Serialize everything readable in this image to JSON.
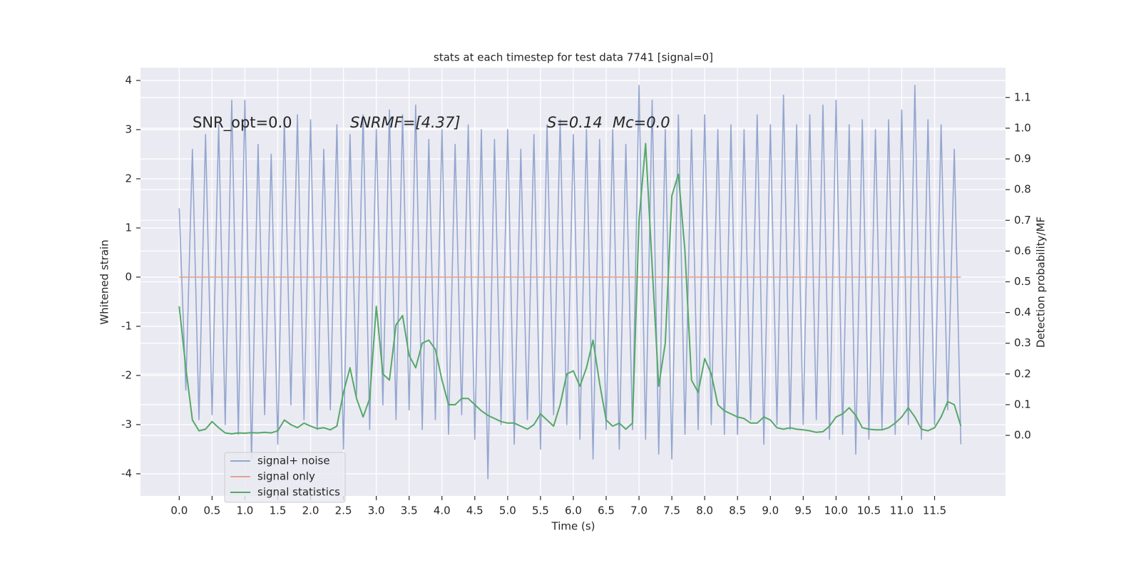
{
  "chart_data": {
    "type": "line",
    "title": "stats at each timestep for test data 7741 [signal=0]",
    "xlabel": "Time (s)",
    "ylabel": "Whitened strain",
    "y2label": "Detection probability/MF",
    "annotations": [
      "SNR_opt=0.0",
      "SNRMF=[4.37]",
      "S=0.14",
      "Mc=0.0"
    ],
    "grid": true,
    "legend": "lower left",
    "xlim": [
      -0.59,
      12.58
    ],
    "xticks": [
      {
        "value": 0,
        "label": "0.0"
      },
      0.5,
      {
        "value": 1,
        "label": "1.0"
      },
      1.5,
      {
        "value": 2,
        "label": "2.0"
      },
      2.5,
      {
        "value": 3,
        "label": "3.0"
      },
      3.5,
      {
        "value": 4,
        "label": "4.0"
      },
      4.5,
      {
        "value": 5,
        "label": "5.0"
      },
      5.5,
      {
        "value": 6,
        "label": "6.0"
      },
      6.5,
      {
        "value": 7,
        "label": "7.0"
      },
      7.5,
      {
        "value": 8,
        "label": "8.0"
      },
      8.5,
      {
        "value": 9,
        "label": "9.0"
      },
      9.5,
      {
        "value": 10,
        "label": "10.0"
      },
      10.5,
      {
        "value": 11,
        "label": "11.0"
      },
      11.5
    ],
    "ylim": [
      -4.45,
      4.26
    ],
    "yticks": [
      -4,
      -3,
      -2,
      -1,
      0,
      1,
      2,
      3,
      4
    ],
    "y2lim": [
      -0.197,
      1.197
    ],
    "y2ticks": [
      {
        "value": 0,
        "label": "0.0"
      },
      0.1,
      0.2,
      0.3,
      0.4,
      0.5,
      0.6,
      0.7,
      0.8,
      0.9,
      {
        "value": 1,
        "label": "1.0"
      },
      1.1
    ],
    "x": [
      0.0,
      0.1,
      0.2,
      0.3,
      0.4,
      0.5,
      0.6,
      0.7,
      0.8,
      0.9,
      1.0,
      1.1,
      1.2,
      1.3,
      1.4,
      1.5,
      1.6,
      1.7,
      1.8,
      1.9,
      2.0,
      2.1,
      2.2,
      2.3,
      2.4,
      2.5,
      2.6,
      2.7,
      2.8,
      2.9,
      3.0,
      3.1,
      3.2,
      3.3,
      3.4,
      3.5,
      3.6,
      3.7,
      3.8,
      3.9,
      4.0,
      4.1,
      4.2,
      4.3,
      4.4,
      4.5,
      4.6,
      4.7,
      4.8,
      4.9,
      5.0,
      5.1,
      5.2,
      5.3,
      5.4,
      5.5,
      5.6,
      5.7,
      5.8,
      5.9,
      6.0,
      6.1,
      6.2,
      6.3,
      6.4,
      6.5,
      6.6,
      6.7,
      6.8,
      6.9,
      7.0,
      7.1,
      7.2,
      7.3,
      7.4,
      7.5,
      7.6,
      7.7,
      7.8,
      7.9,
      8.0,
      8.1,
      8.2,
      8.3,
      8.4,
      8.5,
      8.6,
      8.7,
      8.8,
      8.9,
      9.0,
      9.1,
      9.2,
      9.3,
      9.4,
      9.5,
      9.6,
      9.7,
      9.8,
      9.9,
      10.0,
      10.1,
      10.2,
      10.3,
      10.4,
      10.5,
      10.6,
      10.7,
      10.8,
      10.9,
      11.0,
      11.1,
      11.2,
      11.3,
      11.4,
      11.5,
      11.6,
      11.7,
      11.8,
      11.9
    ],
    "series": [
      {
        "name": "signal+ noise",
        "color": "#93a6cf",
        "values": [
          1.4,
          -2.3,
          2.6,
          -2.9,
          2.9,
          -2.8,
          3.1,
          -3.0,
          3.6,
          -3.2,
          3.6,
          -3.7,
          2.7,
          -2.8,
          2.5,
          -3.4,
          3.2,
          -2.6,
          3.3,
          -2.9,
          3.2,
          -3.1,
          2.6,
          -2.7,
          3.1,
          -3.5,
          2.9,
          -2.4,
          3.3,
          -3.1,
          3.0,
          -2.6,
          3.4,
          -2.9,
          3.3,
          -2.7,
          3.5,
          -3.1,
          2.8,
          -2.9,
          3.0,
          -3.2,
          2.7,
          -2.8,
          3.1,
          -3.3,
          3.0,
          -4.1,
          2.8,
          -3.0,
          3.0,
          -3.4,
          2.6,
          -2.9,
          2.9,
          -3.5,
          3.1,
          -2.8,
          3.2,
          -3.0,
          2.9,
          -3.3,
          3.0,
          -3.7,
          2.8,
          -3.1,
          3.0,
          -3.5,
          2.7,
          -3.1,
          3.9,
          -3.3,
          3.6,
          -3.6,
          3.0,
          -3.7,
          3.3,
          -3.2,
          3.0,
          -3.1,
          3.3,
          -3.0,
          3.0,
          -3.2,
          3.1,
          -3.2,
          3.0,
          -2.9,
          3.3,
          -3.4,
          3.1,
          -3.0,
          3.7,
          -3.1,
          3.1,
          -3.0,
          3.3,
          -2.9,
          3.5,
          -3.3,
          3.6,
          -3.2,
          3.1,
          -3.6,
          3.2,
          -3.3,
          3.0,
          -3.1,
          3.2,
          -3.2,
          3.4,
          -3.0,
          3.9,
          -3.3,
          3.2,
          -3.0,
          3.1,
          -2.7,
          2.6,
          -3.4
        ]
      },
      {
        "name": "signal only",
        "color": "#e3a58a",
        "x": [
          0.0,
          11.9
        ],
        "values": [
          0,
          0
        ]
      },
      {
        "name": "signal statistics",
        "color": "#55a868",
        "axis": "y2",
        "values": [
          0.42,
          0.22,
          0.05,
          0.015,
          0.02,
          0.045,
          0.025,
          0.008,
          0.005,
          0.008,
          0.007,
          0.009,
          0.008,
          0.01,
          0.008,
          0.015,
          0.05,
          0.035,
          0.025,
          0.04,
          0.03,
          0.022,
          0.025,
          0.018,
          0.03,
          0.14,
          0.22,
          0.12,
          0.06,
          0.12,
          0.42,
          0.2,
          0.18,
          0.36,
          0.39,
          0.26,
          0.22,
          0.3,
          0.31,
          0.28,
          0.18,
          0.1,
          0.1,
          0.12,
          0.12,
          0.1,
          0.08,
          0.065,
          0.055,
          0.045,
          0.04,
          0.04,
          0.03,
          0.02,
          0.035,
          0.07,
          0.05,
          0.03,
          0.1,
          0.2,
          0.21,
          0.16,
          0.22,
          0.31,
          0.17,
          0.05,
          0.03,
          0.04,
          0.02,
          0.04,
          0.7,
          0.95,
          0.55,
          0.16,
          0.3,
          0.78,
          0.85,
          0.6,
          0.18,
          0.14,
          0.25,
          0.2,
          0.1,
          0.08,
          0.07,
          0.06,
          0.055,
          0.04,
          0.04,
          0.06,
          0.05,
          0.025,
          0.02,
          0.025,
          0.02,
          0.018,
          0.015,
          0.01,
          0.012,
          0.03,
          0.06,
          0.07,
          0.09,
          0.065,
          0.025,
          0.02,
          0.018,
          0.018,
          0.025,
          0.04,
          0.06,
          0.09,
          0.06,
          0.02,
          0.015,
          0.025,
          0.06,
          0.11,
          0.1,
          0.03
        ]
      }
    ]
  }
}
